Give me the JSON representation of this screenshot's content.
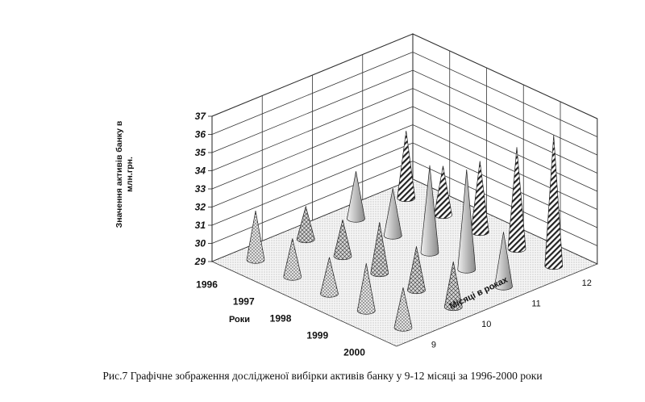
{
  "caption": "Рис.7 Графічне зображення дослідженої вибірки активів банку у 9-12 місяці за 1996-2000 роки",
  "chart_data": {
    "type": "bar",
    "subtype": "3d-cone",
    "title": "",
    "zlabel": "Значення активів банку в млн.грн.",
    "xlabel": "Роки",
    "ylabel": "Місяці в роках",
    "zlim": [
      29,
      37
    ],
    "zticks": [
      "29",
      "30",
      "31",
      "32",
      "33",
      "34",
      "35",
      "36",
      "37"
    ],
    "years": [
      "1996",
      "1997",
      "1998",
      "1999",
      "2000"
    ],
    "months": [
      "9",
      "10",
      "11",
      "12"
    ],
    "series": [
      {
        "month": "9",
        "pattern": "dots",
        "values": [
          31.7,
          31.1,
          31.0,
          31.6,
          31.2
        ]
      },
      {
        "month": "10",
        "pattern": "cross",
        "values": [
          30.8,
          31.0,
          31.8,
          31.4,
          31.5
        ]
      },
      {
        "month": "11",
        "pattern": "plain",
        "values": [
          31.6,
          31.6,
          33.8,
          34.5,
          32.0
        ]
      },
      {
        "month": "12",
        "pattern": "hatch",
        "values": [
          32.7,
          31.7,
          32.9,
          34.6,
          36.2
        ]
      }
    ],
    "grid": true
  }
}
